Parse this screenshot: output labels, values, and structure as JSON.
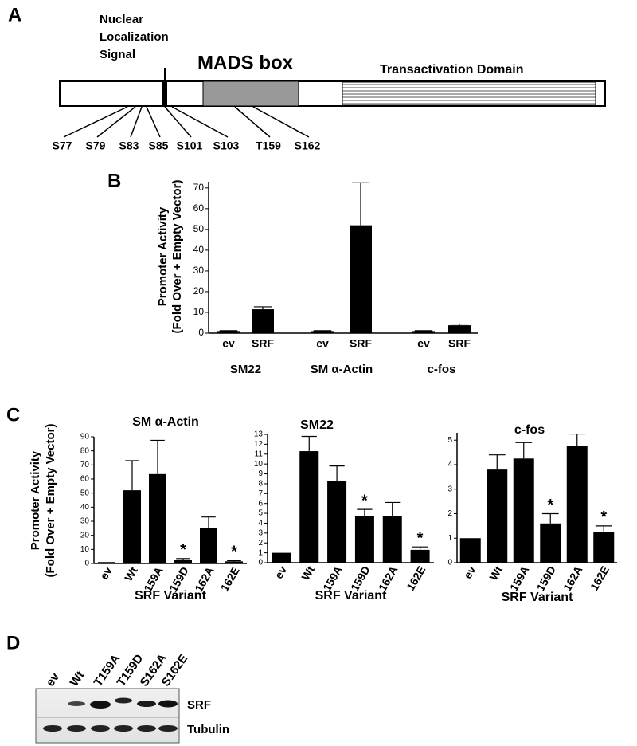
{
  "panel_labels": [
    "A",
    "B",
    "C",
    "D"
  ],
  "diagram": {
    "nls_label": [
      "Nuclear",
      "Localization",
      "Signal"
    ],
    "mads_label": "MADS box",
    "transactivation_label": "Transactivation Domain",
    "sites": [
      "S77",
      "S79",
      "S83",
      "S85",
      "S101",
      "S103",
      "T159",
      "S162"
    ]
  },
  "chart_data": [
    {
      "type": "bar",
      "ylabel": [
        "Promoter Activity",
        "(Fold Over + Empty Vector)"
      ],
      "categories": [
        "ev",
        "SRF",
        "ev",
        "SRF",
        "ev",
        "SRF"
      ],
      "groups": [
        "SM22",
        "SM α-Actin",
        "c-fos"
      ],
      "values": [
        1,
        11.5,
        1,
        52,
        1,
        3.8
      ],
      "errors": [
        0.2,
        1.2,
        0.2,
        20.5,
        0.2,
        0.6
      ],
      "color": "#000000",
      "ylim": [
        0,
        73
      ],
      "yticks": [
        0,
        10,
        20,
        30,
        40,
        50,
        60,
        70
      ]
    },
    {
      "type": "bar",
      "title": "SM α-Actin",
      "ylabel": [
        "Promoter Activity",
        "(Fold Over + Empty Vector)"
      ],
      "xlabel": "SRF Variant",
      "categories": [
        "ev",
        "Wt",
        "159A",
        "159D",
        "162A",
        "162E"
      ],
      "values": [
        1,
        52,
        63.5,
        2.5,
        25,
        1.5
      ],
      "errors": [
        0,
        21,
        24,
        1,
        8,
        0.5
      ],
      "markers": [
        null,
        null,
        null,
        "*",
        null,
        "*"
      ],
      "color": "#000000",
      "ylim": [
        0,
        90
      ],
      "yticks": [
        0,
        10,
        20,
        30,
        40,
        50,
        60,
        70,
        80,
        90
      ]
    },
    {
      "type": "bar",
      "title": "SM22",
      "xlabel": "SRF Variant",
      "categories": [
        "ev",
        "Wt",
        "159A",
        "159D",
        "162A",
        "162E"
      ],
      "values": [
        1,
        11.3,
        8.3,
        4.7,
        4.7,
        1.3
      ],
      "errors": [
        0,
        1.5,
        1.5,
        0.7,
        1.4,
        0.3
      ],
      "markers": [
        null,
        null,
        null,
        "*",
        null,
        "*"
      ],
      "color": "#000000",
      "ylim": [
        0,
        13
      ],
      "yticks": [
        0,
        1,
        2,
        3,
        4,
        5,
        6,
        7,
        8,
        9,
        10,
        11,
        12,
        13
      ]
    },
    {
      "type": "bar",
      "title": "c-fos",
      "xlabel": "SRF Variant",
      "categories": [
        "ev",
        "Wt",
        "159A",
        "159D",
        "162A",
        "162E"
      ],
      "values": [
        1,
        3.8,
        4.25,
        1.6,
        4.75,
        1.25
      ],
      "errors": [
        0,
        0.6,
        0.65,
        0.4,
        0.5,
        0.25
      ],
      "markers": [
        null,
        null,
        null,
        "*",
        null,
        "*"
      ],
      "color": "#000000",
      "ylim": [
        0,
        5.3
      ],
      "yticks": [
        0,
        1,
        2,
        3,
        4,
        5
      ]
    }
  ],
  "blot": {
    "lanes": [
      "ev",
      "Wt",
      "T159A",
      "T159D",
      "S162A",
      "S162E"
    ],
    "rows": [
      "SRF",
      "Tubulin"
    ]
  }
}
